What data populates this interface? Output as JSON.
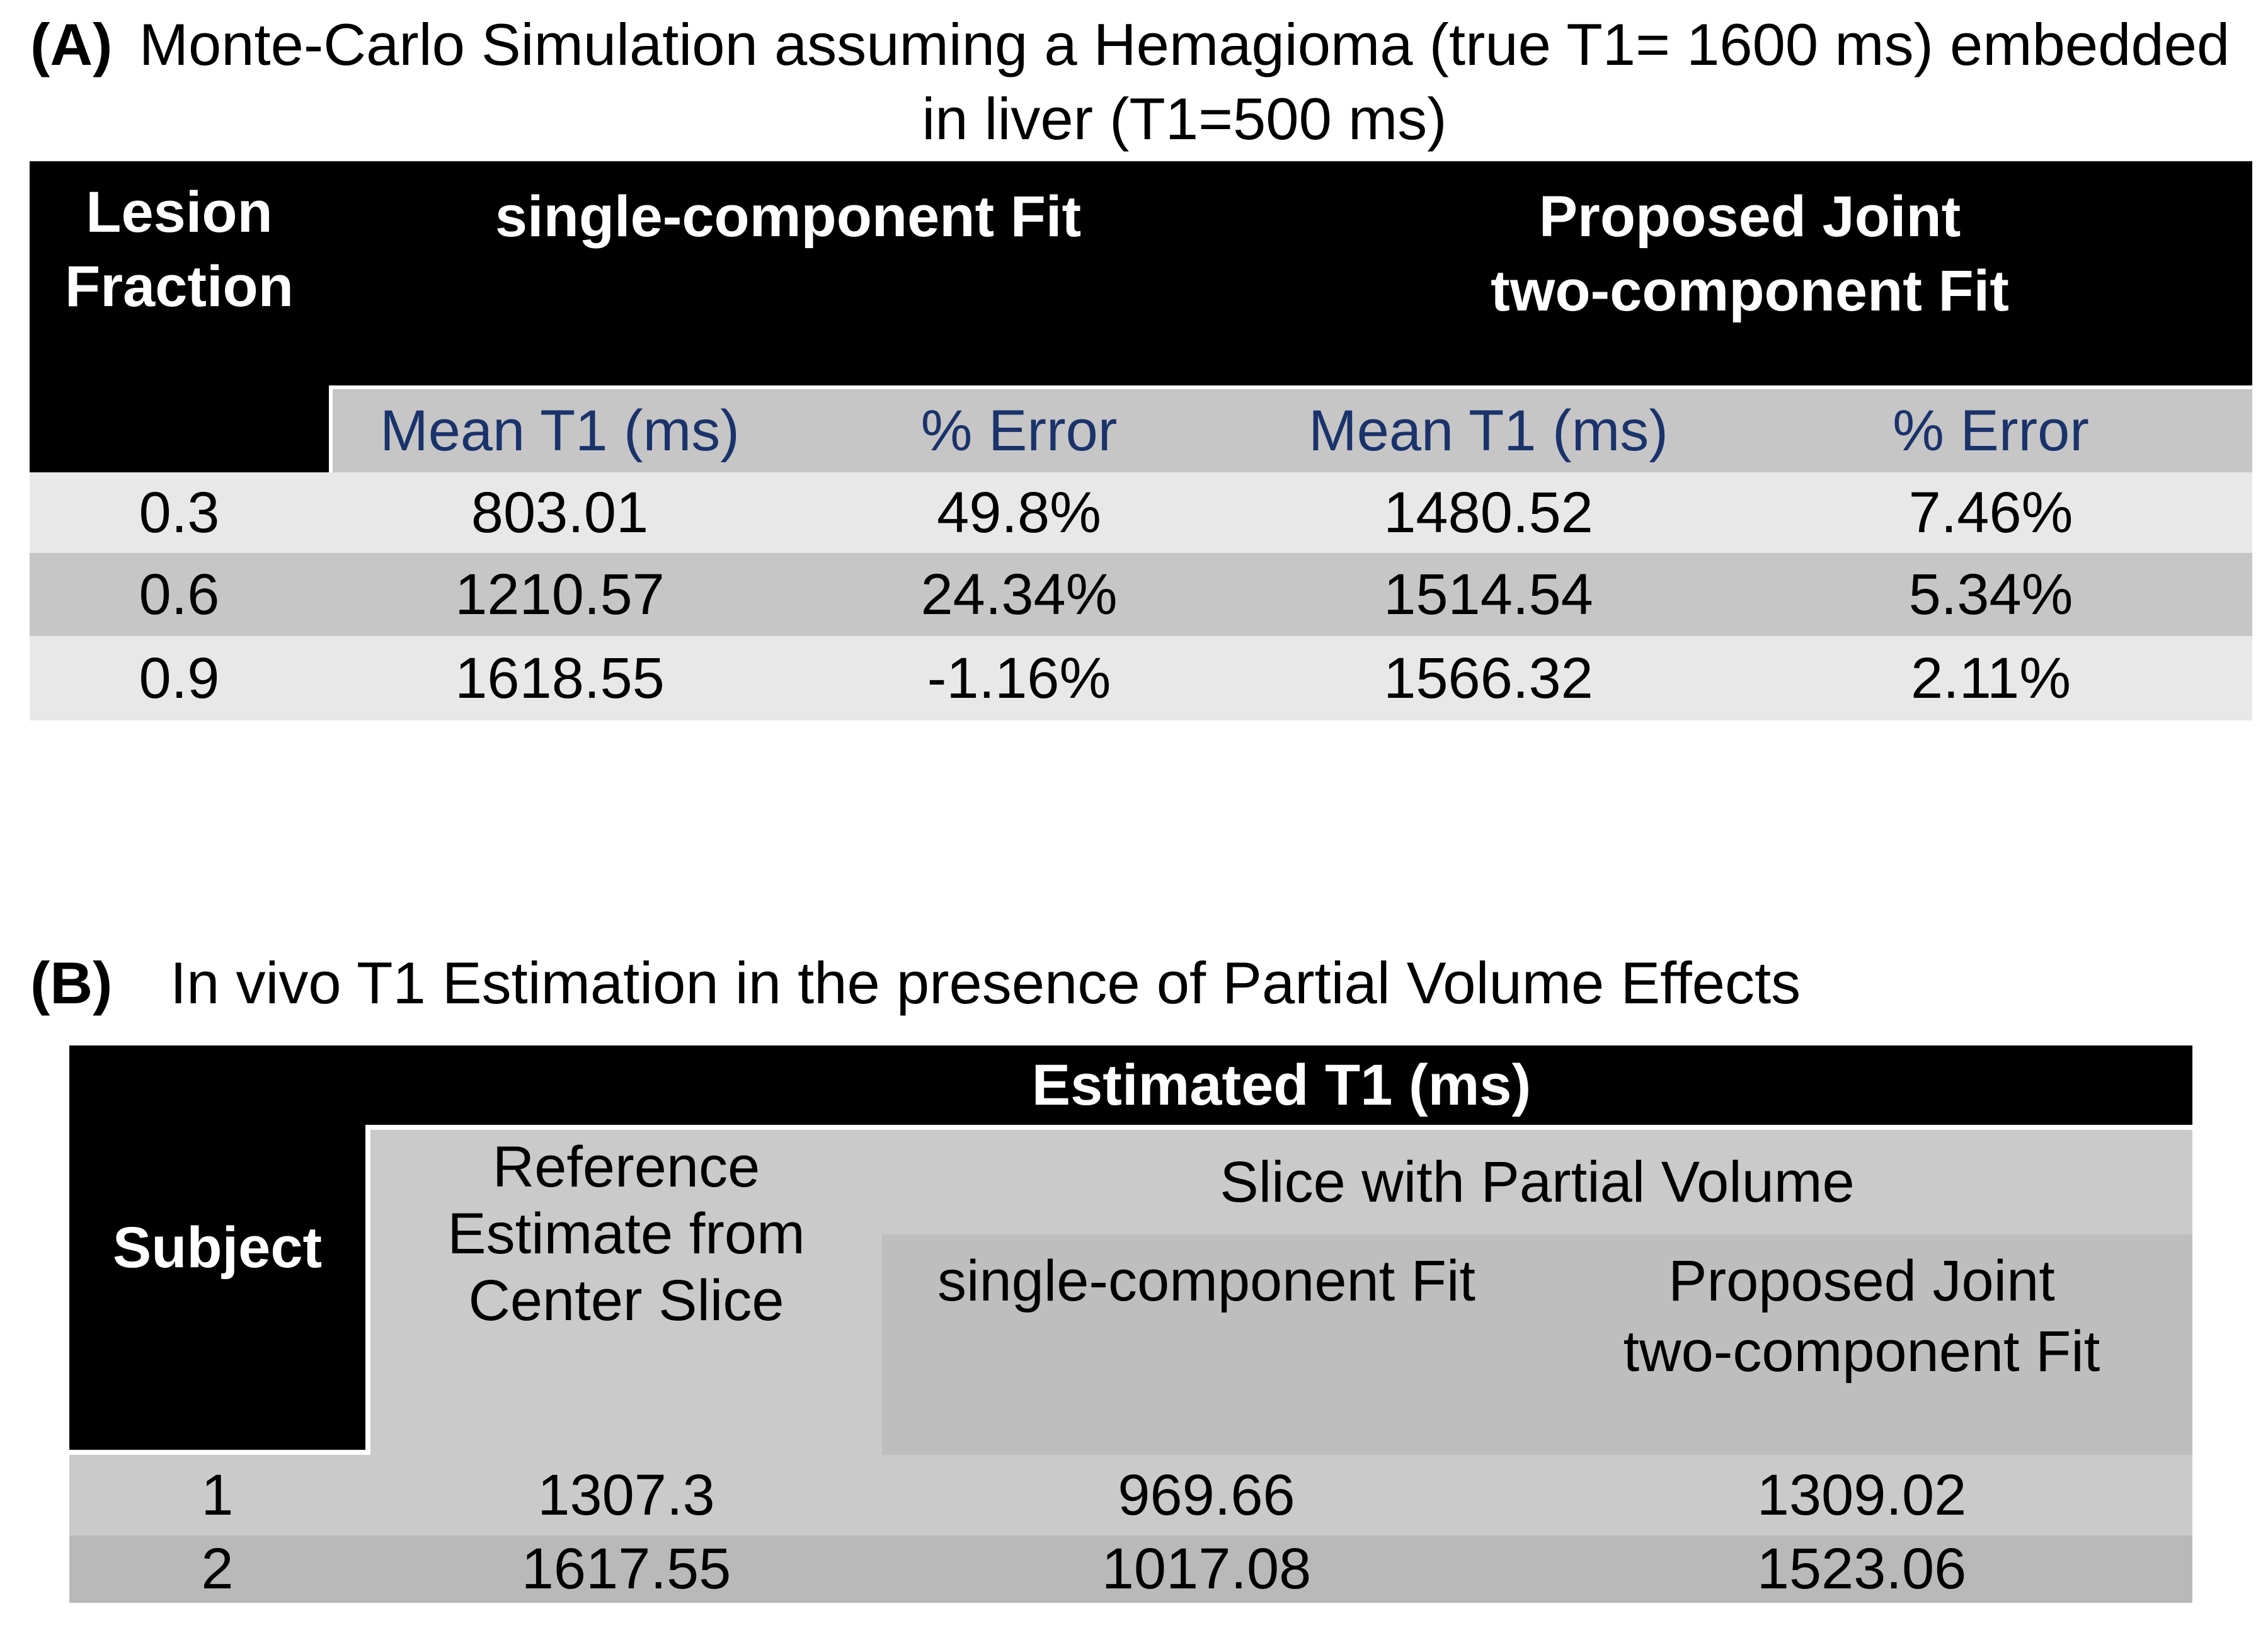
{
  "colors": {
    "table_header_bg": "#000000",
    "table_header_text": "#ffffff",
    "subheader_text_navy": "#1a336b",
    "row_light_gray": "#e8e8e8",
    "row_mid_gray": "#c6c6c6",
    "b_gray_light": "#cacaca",
    "b_gray_mid": "#bebebe",
    "b_row2_gray": "#b9b9b9"
  },
  "panel_a": {
    "label": "(A)",
    "title_line1": "Monte-Carlo Simulation assuming a Hemagioma (true T1= 1600 ms) embedded",
    "title_line2": "in liver (T1=500 ms)",
    "table": {
      "corner_header_line1": "Lesion",
      "corner_header_line2": "Fraction",
      "group_single": "single-component Fit",
      "group_joint_line1": "Proposed Joint",
      "group_joint_line2": "two-component Fit",
      "subheaders": [
        "Mean T1 (ms)",
        "% Error",
        "Mean T1 (ms)",
        "% Error"
      ],
      "rows": [
        [
          "0.3",
          "803.01",
          "49.8%",
          "1480.52",
          "7.46%"
        ],
        [
          "0.6",
          "1210.57",
          "24.34%",
          "1514.54",
          "5.34%"
        ],
        [
          "0.9",
          "1618.55",
          "-1.16%",
          "1566.32",
          "2.11%"
        ]
      ]
    }
  },
  "panel_b": {
    "label": "(B)",
    "title": "In vivo T1 Estimation in the presence of Partial Volume Effects",
    "table": {
      "top_header": "Estimated T1 (ms)",
      "subject_header": "Subject",
      "reference_line1": "Reference",
      "reference_line2": "Estimate from",
      "reference_line3": "Center Slice",
      "slice_header": "Slice with Partial Volume",
      "single_fit": "single-component Fit",
      "joint_line1": "Proposed Joint",
      "joint_line2": "two-component Fit",
      "rows": [
        [
          "1",
          "1307.3",
          "969.66",
          "1309.02"
        ],
        [
          "2",
          "1617.55",
          "1017.08",
          "1523.06"
        ]
      ]
    }
  }
}
